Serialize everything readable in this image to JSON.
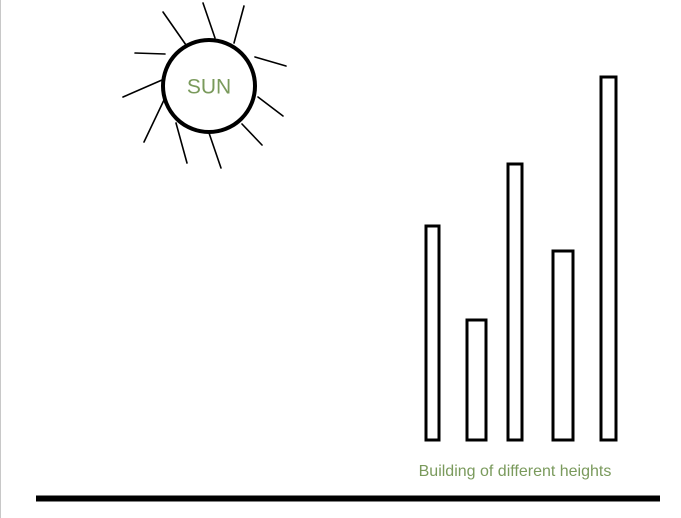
{
  "diagram": {
    "sun": {
      "label": "SUN",
      "ray_count": 12
    },
    "buildings": {
      "caption": "Building of different heights",
      "relative_heights": [
        0.59,
        0.33,
        0.76,
        0.52,
        1.0
      ]
    },
    "colors": {
      "stroke": "#000000",
      "label": "#7a9a5c",
      "background": "#ffffff",
      "left_border": "#c8c8c8"
    }
  }
}
